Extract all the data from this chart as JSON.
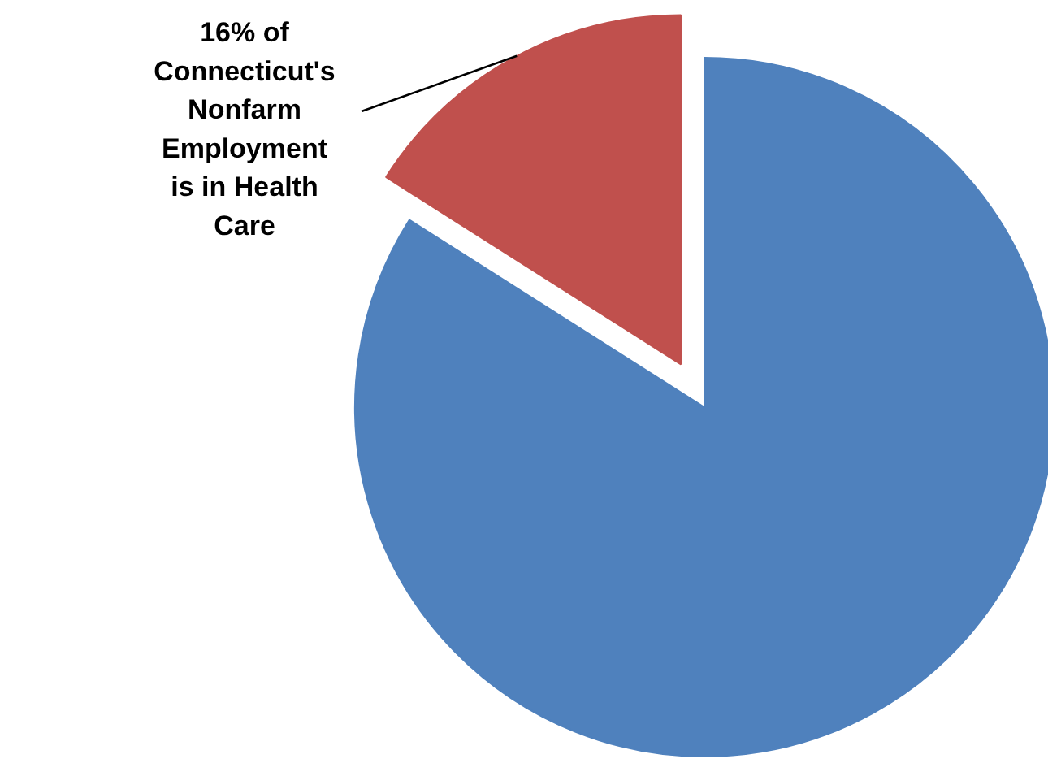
{
  "chart_data": {
    "type": "pie",
    "categories": [
      null,
      "16% of Connecticut's Nonfarm Employment is in Health Care"
    ],
    "values": [
      84,
      16
    ],
    "colors": [
      "#4f81bd",
      "#c0504d"
    ]
  }
}
